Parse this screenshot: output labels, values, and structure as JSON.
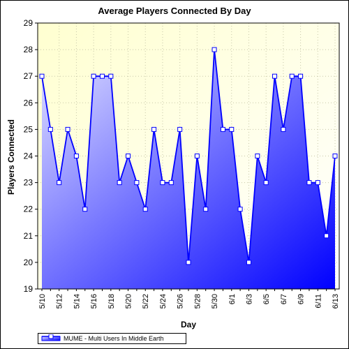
{
  "chart_data": {
    "type": "area",
    "title": "Average Players Connected By Day",
    "xlabel": "Day",
    "ylabel": "Players Connected",
    "ylim": [
      19,
      29
    ],
    "yticks": [
      19,
      20,
      21,
      22,
      23,
      24,
      25,
      26,
      27,
      28,
      29
    ],
    "xticks": [
      "5/10",
      "5/12",
      "5/14",
      "5/16",
      "5/18",
      "5/20",
      "5/22",
      "5/24",
      "5/26",
      "5/28",
      "5/30",
      "6/1",
      "6/3",
      "6/5",
      "6/7",
      "6/9",
      "6/11",
      "6/13"
    ],
    "grid": true,
    "legend_position": "bottom-left",
    "series": [
      {
        "name": "MUME - Multi Users In Middle Earth",
        "color": "#0000ff",
        "x": [
          "5/10",
          "5/11",
          "5/12",
          "5/13",
          "5/14",
          "5/15",
          "5/16",
          "5/17",
          "5/18",
          "5/19",
          "5/20",
          "5/21",
          "5/22",
          "5/23",
          "5/24",
          "5/25",
          "5/26",
          "5/27",
          "5/28",
          "5/29",
          "5/30",
          "5/31",
          "6/1",
          "6/2",
          "6/3",
          "6/4",
          "6/5",
          "6/6",
          "6/7",
          "6/8",
          "6/9",
          "6/10",
          "6/11",
          "6/12",
          "6/13"
        ],
        "values": [
          27,
          25,
          23,
          25,
          24,
          22,
          27,
          27,
          27,
          23,
          24,
          23,
          22,
          25,
          23,
          23,
          25,
          20,
          24,
          22,
          28,
          25,
          25,
          22,
          20,
          24,
          23,
          27,
          25,
          27,
          27,
          23,
          23,
          21,
          24
        ]
      }
    ],
    "colors": {
      "plot_background": "#ffffd8",
      "area_top": "#d8d8ff",
      "area_bottom": "#0000ff",
      "line": "#0000ff"
    }
  }
}
